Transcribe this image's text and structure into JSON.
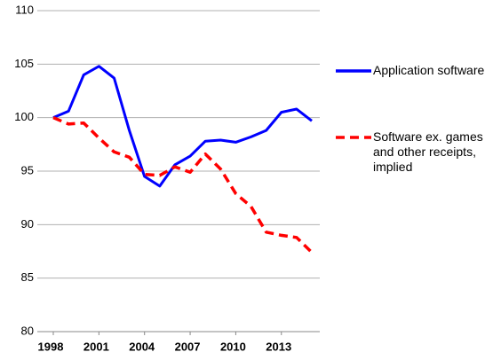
{
  "chart_data": {
    "type": "line",
    "x": [
      1998,
      1999,
      2000,
      2001,
      2002,
      2003,
      2004,
      2005,
      2006,
      2007,
      2008,
      2009,
      2010,
      2011,
      2012,
      2013,
      2014,
      2015
    ],
    "series": [
      {
        "name": "Application software",
        "color": "#0000ff",
        "values": [
          100,
          100.6,
          104,
          104.8,
          103.7,
          98.8,
          94.5,
          93.6,
          95.6,
          96.4,
          97.8,
          97.9,
          97.7,
          98.2,
          98.8,
          100.5,
          100.8,
          99.7
        ]
      },
      {
        "name": "Software ex. games and other receipts, implied",
        "color": "#ff0000",
        "values": [
          100,
          99.4,
          99.5,
          98.1,
          96.8,
          96.3,
          94.7,
          94.6,
          95.4,
          94.9,
          96.6,
          95.2,
          92.9,
          91.7,
          89.3,
          89.0,
          88.8,
          87.4
        ]
      }
    ],
    "xlim": [
      1998,
      2015
    ],
    "xticks": [
      1998,
      2001,
      2004,
      2007,
      2010,
      2013
    ],
    "ylim": [
      80,
      110
    ],
    "yticks": [
      80,
      85,
      90,
      95,
      100,
      105,
      110
    ],
    "grid": true
  }
}
